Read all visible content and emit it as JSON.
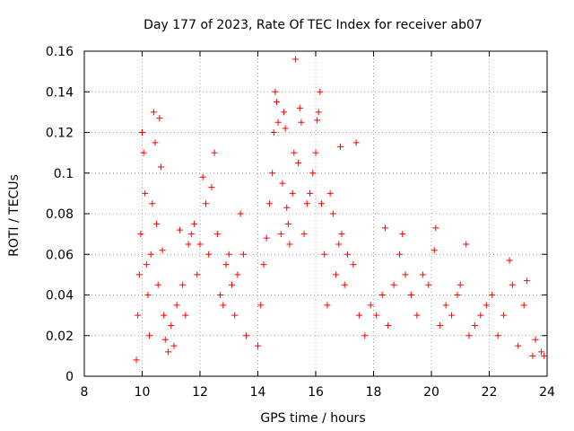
{
  "chart_data": {
    "type": "scatter",
    "title": "Day 177 of 2023, Rate Of TEC Index for receiver ab07",
    "xlabel": "GPS time / hours",
    "ylabel": "ROTI / TECUs",
    "xlim": [
      8,
      24
    ],
    "ylim": [
      0,
      0.16
    ],
    "xticks": [
      "8",
      "10",
      "12",
      "14",
      "16",
      "18",
      "20",
      "22",
      "24"
    ],
    "yticks": [
      "0",
      "0.02",
      "0.04",
      "0.06",
      "0.08",
      "0.1",
      "0.12",
      "0.14",
      "0.16"
    ],
    "grid": true,
    "marker": "+",
    "color": "#ff0000",
    "series": [
      {
        "points": [
          [
            9.8,
            0.008
          ],
          [
            9.85,
            0.03
          ],
          [
            9.9,
            0.05
          ],
          [
            9.95,
            0.07
          ],
          [
            10.0,
            0.12
          ],
          [
            10.05,
            0.11
          ],
          [
            10.1,
            0.09
          ],
          [
            10.15,
            0.055
          ],
          [
            10.2,
            0.04
          ],
          [
            10.25,
            0.02
          ],
          [
            10.3,
            0.06
          ],
          [
            10.35,
            0.085
          ],
          [
            10.4,
            0.13
          ],
          [
            10.45,
            0.115
          ],
          [
            10.5,
            0.075
          ],
          [
            10.55,
            0.045
          ],
          [
            10.6,
            0.127
          ],
          [
            10.65,
            0.103
          ],
          [
            10.7,
            0.062
          ],
          [
            10.75,
            0.03
          ],
          [
            10.8,
            0.018
          ],
          [
            10.9,
            0.012
          ],
          [
            11.0,
            0.025
          ],
          [
            11.1,
            0.015
          ],
          [
            11.2,
            0.035
          ],
          [
            11.3,
            0.072
          ],
          [
            11.4,
            0.045
          ],
          [
            11.5,
            0.03
          ],
          [
            11.6,
            0.065
          ],
          [
            11.7,
            0.07
          ],
          [
            11.8,
            0.075
          ],
          [
            11.9,
            0.05
          ],
          [
            12.0,
            0.065
          ],
          [
            12.1,
            0.098
          ],
          [
            12.2,
            0.085
          ],
          [
            12.3,
            0.06
          ],
          [
            12.4,
            0.093
          ],
          [
            12.5,
            0.11
          ],
          [
            12.6,
            0.07
          ],
          [
            12.7,
            0.04
          ],
          [
            12.8,
            0.035
          ],
          [
            12.9,
            0.055
          ],
          [
            13.0,
            0.06
          ],
          [
            13.1,
            0.045
          ],
          [
            13.2,
            0.03
          ],
          [
            13.3,
            0.05
          ],
          [
            13.4,
            0.08
          ],
          [
            13.5,
            0.06
          ],
          [
            13.6,
            0.02
          ],
          [
            14.0,
            0.015
          ],
          [
            14.1,
            0.035
          ],
          [
            14.2,
            0.055
          ],
          [
            14.3,
            0.068
          ],
          [
            14.4,
            0.085
          ],
          [
            14.5,
            0.1
          ],
          [
            14.55,
            0.12
          ],
          [
            14.6,
            0.14
          ],
          [
            14.65,
            0.135
          ],
          [
            14.7,
            0.125
          ],
          [
            14.8,
            0.07
          ],
          [
            14.85,
            0.095
          ],
          [
            14.9,
            0.13
          ],
          [
            14.95,
            0.122
          ],
          [
            15.0,
            0.083
          ],
          [
            15.05,
            0.075
          ],
          [
            15.1,
            0.065
          ],
          [
            15.2,
            0.09
          ],
          [
            15.25,
            0.11
          ],
          [
            15.3,
            0.156
          ],
          [
            15.4,
            0.105
          ],
          [
            15.45,
            0.132
          ],
          [
            15.5,
            0.125
          ],
          [
            15.6,
            0.07
          ],
          [
            15.7,
            0.085
          ],
          [
            15.8,
            0.09
          ],
          [
            15.9,
            0.1
          ],
          [
            16.0,
            0.11
          ],
          [
            16.05,
            0.126
          ],
          [
            16.1,
            0.13
          ],
          [
            16.15,
            0.14
          ],
          [
            16.2,
            0.085
          ],
          [
            16.3,
            0.06
          ],
          [
            16.4,
            0.035
          ],
          [
            16.5,
            0.09
          ],
          [
            16.6,
            0.08
          ],
          [
            16.7,
            0.05
          ],
          [
            16.8,
            0.065
          ],
          [
            16.85,
            0.113
          ],
          [
            16.9,
            0.07
          ],
          [
            17.0,
            0.045
          ],
          [
            17.1,
            0.06
          ],
          [
            17.3,
            0.055
          ],
          [
            17.4,
            0.115
          ],
          [
            17.5,
            0.03
          ],
          [
            17.7,
            0.02
          ],
          [
            17.9,
            0.035
          ],
          [
            18.1,
            0.03
          ],
          [
            18.3,
            0.04
          ],
          [
            18.4,
            0.073
          ],
          [
            18.5,
            0.025
          ],
          [
            18.7,
            0.045
          ],
          [
            18.9,
            0.06
          ],
          [
            19.0,
            0.07
          ],
          [
            19.1,
            0.05
          ],
          [
            19.3,
            0.04
          ],
          [
            19.5,
            0.03
          ],
          [
            19.7,
            0.05
          ],
          [
            19.9,
            0.045
          ],
          [
            20.1,
            0.062
          ],
          [
            20.15,
            0.073
          ],
          [
            20.3,
            0.025
          ],
          [
            20.5,
            0.035
          ],
          [
            20.7,
            0.03
          ],
          [
            20.9,
            0.04
          ],
          [
            21.0,
            0.045
          ],
          [
            21.2,
            0.065
          ],
          [
            21.3,
            0.02
          ],
          [
            21.5,
            0.025
          ],
          [
            21.7,
            0.03
          ],
          [
            21.9,
            0.035
          ],
          [
            22.1,
            0.04
          ],
          [
            22.3,
            0.02
          ],
          [
            22.5,
            0.03
          ],
          [
            22.7,
            0.057
          ],
          [
            22.8,
            0.045
          ],
          [
            23.0,
            0.015
          ],
          [
            23.2,
            0.035
          ],
          [
            23.3,
            0.047
          ],
          [
            23.5,
            0.01
          ],
          [
            23.6,
            0.018
          ],
          [
            23.8,
            0.012
          ],
          [
            23.9,
            0.01
          ]
        ]
      }
    ]
  }
}
